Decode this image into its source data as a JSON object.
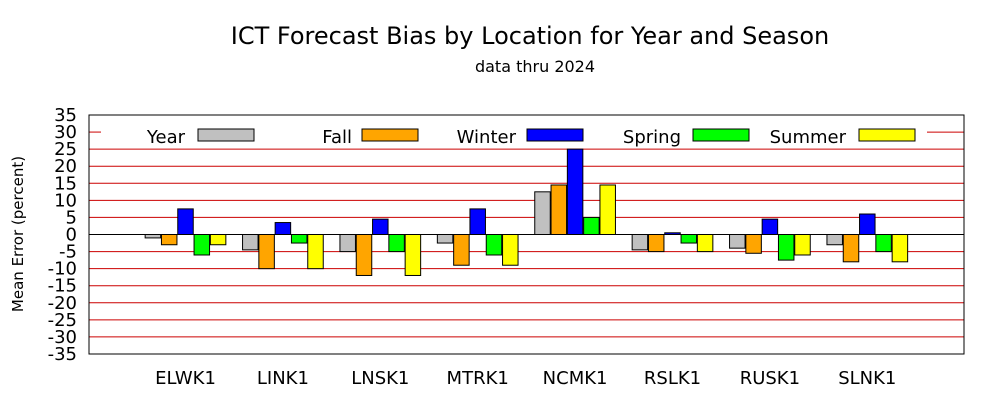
{
  "chart_data": {
    "type": "bar",
    "title": "ICT Forecast Bias by Location for Year and Season",
    "subtitle": "data thru 2024",
    "xlabel": "",
    "ylabel": "Mean Error (percent)",
    "ylim": [
      -35,
      35
    ],
    "yticks": [
      "35",
      "30",
      "25",
      "20",
      "15",
      "10",
      "5",
      "0",
      "-5",
      "-10",
      "-15",
      "-20",
      "-25",
      "-30",
      "-35"
    ],
    "grid": "horizontal",
    "legend": "top",
    "categories": [
      "ELWK1",
      "LINK1",
      "LNSK1",
      "MTRK1",
      "NCMK1",
      "RSLK1",
      "RUSK1",
      "SLNK1"
    ],
    "series": [
      {
        "name": "Year",
        "color": "#c0c0c0",
        "values": [
          -1,
          -4.5,
          -5,
          -2.5,
          12.5,
          -4.5,
          -4,
          -3
        ]
      },
      {
        "name": "Fall",
        "color": "#ffa500",
        "values": [
          -3,
          -10,
          -12,
          -9,
          14.5,
          -5,
          -5.5,
          -8
        ]
      },
      {
        "name": "Winter",
        "color": "#0000ff",
        "values": [
          7.5,
          3.5,
          4.5,
          7.5,
          25,
          0.5,
          4.5,
          6
        ]
      },
      {
        "name": "Spring",
        "color": "#00ff00",
        "values": [
          -6,
          -2.5,
          -5,
          -6,
          5,
          -2.5,
          -7.5,
          -5
        ]
      },
      {
        "name": "Summer",
        "color": "#ffff00",
        "values": [
          -3,
          -10,
          -12,
          -9,
          14.5,
          -5,
          -6,
          -8
        ]
      }
    ]
  }
}
